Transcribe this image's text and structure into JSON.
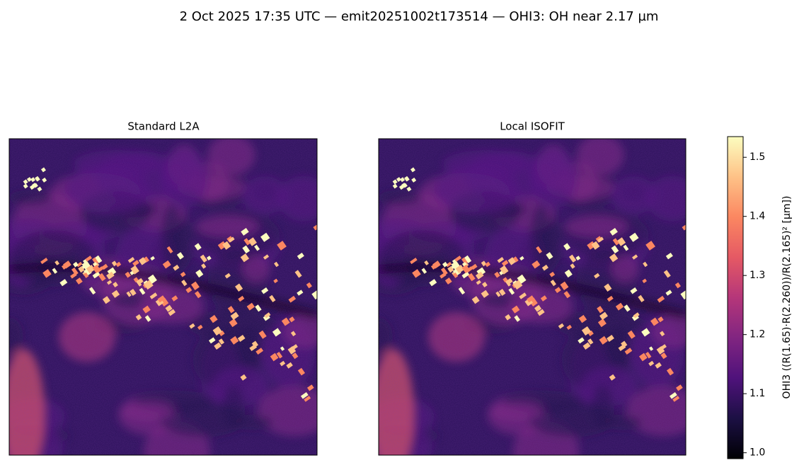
{
  "chart_data": {
    "type": "image",
    "title": "2 Oct 2025 17:35 UTC — emit20251002t173514 — OHI3: OH near 2.17 µm",
    "panels": [
      {
        "title": "Standard L2A"
      },
      {
        "title": "Local ISOFIT"
      }
    ],
    "colormap": "magma",
    "colorbar": {
      "label": "OHI3  ((R(1.65)·R(2.260))/R(2.165)²  [µm])",
      "lim": [
        0.99,
        1.535
      ],
      "ticks": [
        {
          "value": 1.0,
          "label": "1.0"
        },
        {
          "value": 1.1,
          "label": "1.1"
        },
        {
          "value": 1.2,
          "label": "1.2"
        },
        {
          "value": 1.3,
          "label": "1.3"
        },
        {
          "value": 1.4,
          "label": "1.4"
        },
        {
          "value": 1.5,
          "label": "1.5"
        }
      ]
    }
  }
}
